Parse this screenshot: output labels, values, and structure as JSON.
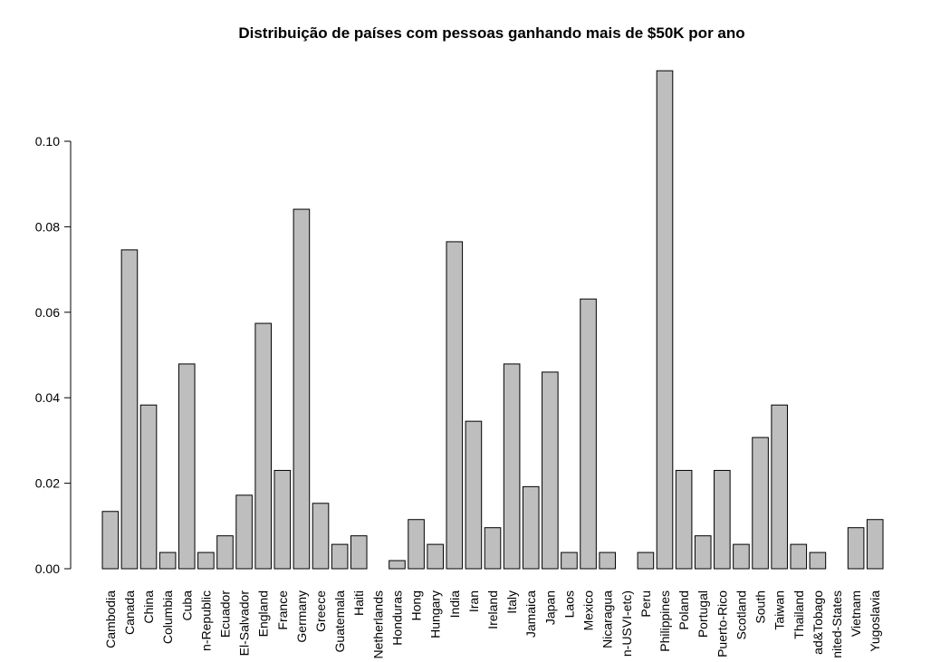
{
  "chart_data": {
    "type": "bar",
    "title": "Distribuição de países com pessoas ganhando mais de $50K por ano",
    "categories": [
      "Cambodia",
      "Canada",
      "China",
      "Columbia",
      "Cuba",
      "n-Republic",
      "Ecuador",
      "El-Salvador",
      "England",
      "France",
      "Germany",
      "Greece",
      "Guatemala",
      "Haiti",
      "Netherlands",
      "Honduras",
      "Hong",
      "Hungary",
      "India",
      "Iran",
      "Ireland",
      "Italy",
      "Jamaica",
      "Japan",
      "Laos",
      "Mexico",
      "Nicaragua",
      "n-USVI-etc)",
      "Peru",
      "Philippines",
      "Poland",
      "Portugal",
      "Puerto-Rico",
      "Scotland",
      "South",
      "Taiwan",
      "Thailand",
      "ad&Tobago",
      "nited-States",
      "Vietnam",
      "Yugoslavia"
    ],
    "values": [
      0.0134,
      0.0746,
      0.0383,
      0.0038,
      0.0479,
      0.0038,
      0.0077,
      0.0172,
      0.0574,
      0.023,
      0.0841,
      0.0153,
      0.0057,
      0.0077,
      0,
      0.0019,
      0.0115,
      0.0057,
      0.0765,
      0.0345,
      0.0096,
      0.0479,
      0.0192,
      0.046,
      0.0038,
      0.0631,
      0.0038,
      0,
      0.0038,
      0.1165,
      0.023,
      0.0077,
      0.023,
      0.0057,
      0.0307,
      0.0383,
      0.0057,
      0.0038,
      0,
      0.0096,
      0.0115
    ],
    "color": "#bebebe",
    "ylim": [
      0,
      0.12
    ],
    "yticks": [
      {
        "value": 0,
        "label": "0.00"
      },
      {
        "value": 0.02,
        "label": "0.02"
      },
      {
        "value": 0.04,
        "label": "0.04"
      },
      {
        "value": 0.06,
        "label": "0.06"
      },
      {
        "value": 0.08,
        "label": "0.08"
      },
      {
        "value": 0.1,
        "label": "0.10"
      }
    ]
  }
}
